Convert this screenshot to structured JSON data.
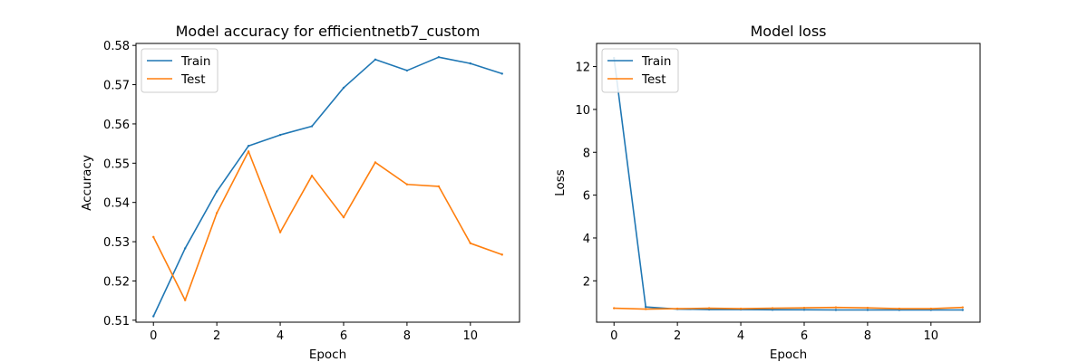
{
  "chart_data": [
    {
      "type": "line",
      "title": "Model accuracy for efficientnetb7_custom",
      "xlabel": "Epoch",
      "ylabel": "Accuracy",
      "xlim": [
        -0.55,
        11.55
      ],
      "ylim": [
        0.5095,
        0.5805
      ],
      "x": [
        0,
        1,
        2,
        3,
        4,
        5,
        6,
        7,
        8,
        9,
        10,
        11
      ],
      "xticks": [
        0,
        2,
        4,
        6,
        8,
        10
      ],
      "xtick_labels": [
        "0",
        "2",
        "4",
        "6",
        "8",
        "10"
      ],
      "yticks": [
        0.51,
        0.52,
        0.53,
        0.54,
        0.55,
        0.56,
        0.57,
        0.58
      ],
      "ytick_labels": [
        "0.51",
        "0.52",
        "0.53",
        "0.54",
        "0.55",
        "0.56",
        "0.57",
        "0.58"
      ],
      "legend_position": "upper-left",
      "series": [
        {
          "name": "Train",
          "color": "#1f77b4",
          "values": [
            0.511,
            0.5283,
            0.5428,
            0.5544,
            0.5572,
            0.5594,
            0.5692,
            0.5764,
            0.5736,
            0.577,
            0.5754,
            0.5728
          ]
        },
        {
          "name": "Test",
          "color": "#ff7f0e",
          "values": [
            0.5312,
            0.5151,
            0.5373,
            0.553,
            0.5324,
            0.5468,
            0.5362,
            0.5502,
            0.5446,
            0.5441,
            0.5296,
            0.5267
          ]
        }
      ]
    },
    {
      "type": "line",
      "title": "Model loss",
      "xlabel": "Epoch",
      "ylabel": "Loss",
      "xlim": [
        -0.55,
        11.55
      ],
      "ylim": [
        0.07,
        13.08
      ],
      "x": [
        0,
        1,
        2,
        3,
        4,
        5,
        6,
        7,
        8,
        9,
        10,
        11
      ],
      "xticks": [
        0,
        2,
        4,
        6,
        8,
        10
      ],
      "xtick_labels": [
        "0",
        "2",
        "4",
        "6",
        "8",
        "10"
      ],
      "yticks": [
        2,
        4,
        6,
        8,
        10,
        12
      ],
      "ytick_labels": [
        "2",
        "4",
        "6",
        "8",
        "10",
        "12"
      ],
      "legend_position": "upper-left",
      "series": [
        {
          "name": "Train",
          "color": "#1f77b4",
          "values": [
            12.4,
            0.78,
            0.68,
            0.66,
            0.66,
            0.65,
            0.65,
            0.64,
            0.64,
            0.64,
            0.64,
            0.64
          ]
        },
        {
          "name": "Test",
          "color": "#ff7f0e",
          "values": [
            0.72,
            0.68,
            0.7,
            0.72,
            0.7,
            0.72,
            0.74,
            0.76,
            0.74,
            0.7,
            0.7,
            0.76
          ]
        }
      ]
    }
  ]
}
